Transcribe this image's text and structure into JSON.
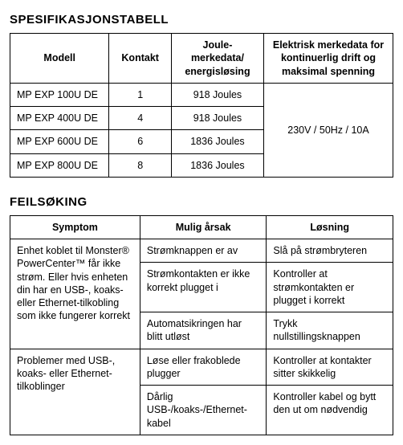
{
  "section1": {
    "heading": "SPESIFIKASJONSTABELL",
    "headers": {
      "model": "Modell",
      "contact": "Kontakt",
      "joule": "Joule-merkedata/ energisløsing",
      "electrical": "Elektrisk merkedata for kontinuerlig drift og maksimal spenning"
    },
    "rows": [
      {
        "model": "MP EXP 100U DE",
        "contact": "1",
        "joule": "918 Joules"
      },
      {
        "model": "MP EXP 400U DE",
        "contact": "4",
        "joule": "918 Joules"
      },
      {
        "model": "MP EXP 600U DE",
        "contact": "6",
        "joule": "1836 Joules"
      },
      {
        "model": "MP EXP 800U DE",
        "contact": "8",
        "joule": "1836 Joules"
      }
    ],
    "electrical_value": "230V / 50Hz / 10A"
  },
  "section2": {
    "heading": "FEILSØKING",
    "headers": {
      "symptom": "Symptom",
      "cause": "Mulig årsak",
      "solution": "Løsning"
    },
    "group1": {
      "symptom": "Enhet koblet til Monster® PowerCenter™ får ikke strøm. Eller hvis enheten din har en USB-, koaks- eller Ethernet-tilkobling som ikke fungerer korrekt",
      "rows": [
        {
          "cause": "Strømknappen er av",
          "solution": "Slå på strømbryteren"
        },
        {
          "cause": "Strømkontakten er ikke korrekt plugget i",
          "solution": "Kontroller at strømkontakten er plugget i korrekt"
        },
        {
          "cause": "Automatsikringen har blitt utløst",
          "solution": "Trykk nullstillingsknappen"
        }
      ]
    },
    "group2": {
      "symptom": "Problemer med USB-, koaks- eller Ethernet-tilkoblinger",
      "rows": [
        {
          "cause": "Løse eller frakoblede plugger",
          "solution": "Kontroller at kontakter sitter skikkelig"
        },
        {
          "cause": "Dårlig USB-/koaks-/Ethernet-kabel",
          "solution": "Kontroller kabel og bytt den ut om nødvendig"
        }
      ]
    }
  }
}
